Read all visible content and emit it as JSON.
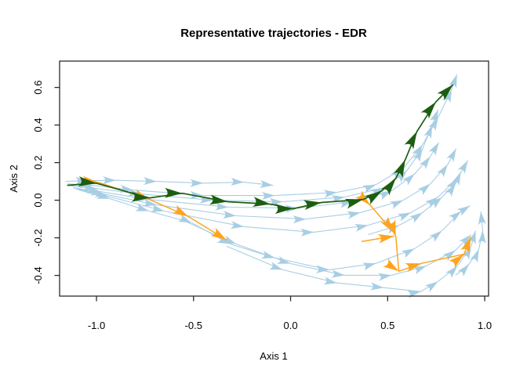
{
  "title": "Representative trajectories - EDR",
  "axes": {
    "x": {
      "label": "Axis 1",
      "tick_labels": [
        "-1.0",
        "-0.5",
        "0.0",
        "0.5",
        "1.0"
      ],
      "tick_values": [
        -1.0,
        -0.5,
        0.0,
        0.5,
        1.0
      ]
    },
    "y": {
      "label": "Axis 2",
      "tick_labels": [
        "-0.4",
        "-0.2",
        "0.0",
        "0.2",
        "0.4",
        "0.6"
      ],
      "tick_values": [
        -0.4,
        -0.2,
        0.0,
        0.2,
        0.4,
        0.6
      ]
    }
  },
  "colors": {
    "background": "#FFFFFF",
    "box": "#2B2B2B",
    "blue": "#A8CEE4",
    "green": "#1B5E10",
    "orange": "#FFA41E"
  },
  "chart_data": {
    "type": "line",
    "subtype": "trajectories-with-arrows",
    "title": "Representative trajectories - EDR",
    "xlabel": "Axis 1",
    "ylabel": "Axis 2",
    "xlim": [
      -1.19,
      1.02
    ],
    "ylim": [
      -0.51,
      0.74
    ],
    "x_ticks": [
      -1.0,
      -0.5,
      0.0,
      0.5,
      1.0
    ],
    "y_ticks": [
      -0.4,
      -0.2,
      0.0,
      0.2,
      0.4,
      0.6
    ],
    "x_tick_labels": [
      "-1.0",
      "-0.5",
      "0.0",
      "0.5",
      "1.0"
    ],
    "y_tick_labels": [
      "-0.4",
      "-0.2",
      "0.0",
      "0.2",
      "0.4",
      "0.6"
    ],
    "grid": false,
    "legend": "none",
    "series": [
      {
        "name": "background-trajectory-1",
        "role": "background",
        "points": [
          [
            -1.16,
            0.1
          ],
          [
            -1.04,
            0.104
          ],
          [
            -0.9,
            0.106
          ],
          [
            -0.69,
            0.1
          ],
          [
            -0.45,
            0.091
          ],
          [
            -0.24,
            0.096
          ],
          [
            -0.09,
            0.079
          ]
        ]
      },
      {
        "name": "background-trajectory-2",
        "role": "background",
        "points": [
          [
            -1.151,
            0.087
          ],
          [
            -1.02,
            0.079
          ],
          [
            -0.81,
            0.054
          ],
          [
            -0.45,
            0.025
          ],
          [
            -0.08,
            0.025
          ],
          [
            0.24,
            0.042
          ],
          [
            0.44,
            0.083
          ],
          [
            0.58,
            0.17
          ],
          [
            0.68,
            0.295
          ],
          [
            0.76,
            0.44
          ],
          [
            0.83,
            0.59
          ],
          [
            0.857,
            0.669
          ]
        ]
      },
      {
        "name": "background-trajectory-3",
        "role": "background",
        "points": [
          [
            -1.13,
            0.075
          ],
          [
            -1.0,
            0.062
          ],
          [
            -0.77,
            0.033
          ],
          [
            -0.4,
            0.0
          ],
          [
            -0.04,
            -0.008
          ],
          [
            0.28,
            0.017
          ],
          [
            0.48,
            0.066
          ],
          [
            0.6,
            0.158
          ],
          [
            0.68,
            0.274
          ],
          [
            0.73,
            0.399
          ],
          [
            0.76,
            0.482
          ]
        ]
      },
      {
        "name": "background-trajectory-4",
        "role": "background",
        "points": [
          [
            -1.12,
            0.066
          ],
          [
            -0.98,
            0.046
          ],
          [
            -0.73,
            0.004
          ],
          [
            -0.32,
            -0.037
          ],
          [
            0.04,
            -0.042
          ],
          [
            0.32,
            -0.008
          ],
          [
            0.52,
            0.05
          ],
          [
            0.64,
            0.141
          ],
          [
            0.72,
            0.233
          ],
          [
            0.764,
            0.307
          ]
        ]
      },
      {
        "name": "background-trajectory-5",
        "role": "background",
        "points": [
          [
            -1.11,
            0.062
          ],
          [
            -0.96,
            0.033
          ],
          [
            -0.69,
            -0.025
          ],
          [
            -0.28,
            -0.083
          ],
          [
            0.08,
            -0.1
          ],
          [
            0.36,
            -0.066
          ],
          [
            0.58,
            0.0
          ],
          [
            0.72,
            0.087
          ],
          [
            0.81,
            0.191
          ],
          [
            0.853,
            0.274
          ]
        ]
      },
      {
        "name": "background-trajectory-6",
        "role": "background",
        "points": [
          [
            -1.1,
            0.058
          ],
          [
            -0.94,
            0.021
          ],
          [
            -0.65,
            -0.058
          ],
          [
            -0.24,
            -0.141
          ],
          [
            0.12,
            -0.17
          ],
          [
            0.4,
            -0.133
          ],
          [
            0.62,
            -0.066
          ],
          [
            0.76,
            0.017
          ],
          [
            0.86,
            0.116
          ],
          [
            0.913,
            0.212
          ]
        ]
      },
      {
        "name": "background-trajectory-7",
        "role": "background",
        "points": [
          [
            -1.09,
            0.054
          ],
          [
            -0.93,
            0.008
          ],
          [
            -0.73,
            -0.058
          ],
          [
            -0.51,
            -0.12
          ],
          [
            -0.31,
            -0.233
          ],
          [
            -0.08,
            -0.307
          ],
          [
            0.2,
            -0.37
          ],
          [
            0.44,
            -0.336
          ],
          [
            0.64,
            -0.257
          ],
          [
            0.78,
            -0.162
          ],
          [
            0.88,
            -0.058
          ],
          [
            0.925,
            -0.029
          ]
        ]
      },
      {
        "name": "background-trajectory-8",
        "role": "background",
        "points": [
          [
            -0.57,
            -0.1
          ],
          [
            -0.28,
            -0.233
          ],
          [
            0.0,
            -0.337
          ],
          [
            0.28,
            -0.399
          ],
          [
            0.52,
            -0.399
          ],
          [
            0.7,
            -0.349
          ],
          [
            0.85,
            -0.266
          ],
          [
            0.93,
            -0.183
          ]
        ]
      },
      {
        "name": "background-trajectory-9",
        "role": "background",
        "points": [
          [
            -0.33,
            -0.245
          ],
          [
            -0.04,
            -0.37
          ],
          [
            0.24,
            -0.44
          ],
          [
            0.48,
            -0.465
          ],
          [
            0.67,
            -0.486
          ],
          [
            0.76,
            -0.432
          ],
          [
            0.86,
            -0.349
          ],
          [
            0.93,
            -0.245
          ],
          [
            0.953,
            -0.162
          ]
        ]
      },
      {
        "name": "background-trajectory-10",
        "role": "background",
        "points": [
          [
            0.4,
            -0.183
          ],
          [
            0.56,
            -0.133
          ],
          [
            0.68,
            -0.066
          ],
          [
            0.78,
            0.017
          ],
          [
            0.85,
            0.087
          ],
          [
            0.877,
            0.15
          ]
        ]
      },
      {
        "name": "background-trajectory-11",
        "role": "background",
        "points": [
          [
            0.85,
            -0.4
          ],
          [
            0.92,
            -0.34
          ],
          [
            0.97,
            -0.26
          ],
          [
            0.99,
            -0.16
          ],
          [
            0.98,
            -0.06
          ]
        ]
      },
      {
        "name": "representative-trajectory-orange-1",
        "role": "orange",
        "points": [
          [
            -1.139,
            0.079
          ],
          [
            -0.99,
            0.095
          ],
          [
            -0.728,
            0.004
          ],
          [
            -0.526,
            -0.087
          ],
          [
            -0.329,
            -0.212
          ]
        ]
      },
      {
        "name": "representative-trajectory-orange-2",
        "role": "orange",
        "points": [
          [
            0.373,
            0.004
          ],
          [
            0.409,
            -0.025
          ],
          [
            0.53,
            -0.17
          ],
          [
            0.542,
            -0.191
          ],
          [
            0.558,
            -0.378
          ],
          [
            0.675,
            -0.336
          ],
          [
            0.893,
            -0.287
          ],
          [
            0.929,
            -0.195
          ]
        ]
      },
      {
        "name": "representative-trajectory-orange-3",
        "role": "orange",
        "points": [
          [
            0.365,
            -0.22
          ],
          [
            0.534,
            -0.191
          ]
        ]
      },
      {
        "name": "representative-trajectory-green",
        "role": "green",
        "points": [
          [
            -1.151,
            0.079
          ],
          [
            -1.002,
            0.091
          ],
          [
            -0.728,
            0.012
          ],
          [
            -0.558,
            0.037
          ],
          [
            -0.325,
            -0.008
          ],
          [
            -0.103,
            -0.021
          ],
          [
            0.01,
            -0.046
          ],
          [
            0.159,
            -0.012
          ],
          [
            0.373,
            0.004
          ],
          [
            0.47,
            0.05
          ],
          [
            0.542,
            0.116
          ],
          [
            0.591,
            0.216
          ],
          [
            0.651,
            0.366
          ],
          [
            0.748,
            0.523
          ],
          [
            0.837,
            0.615
          ]
        ]
      }
    ]
  }
}
